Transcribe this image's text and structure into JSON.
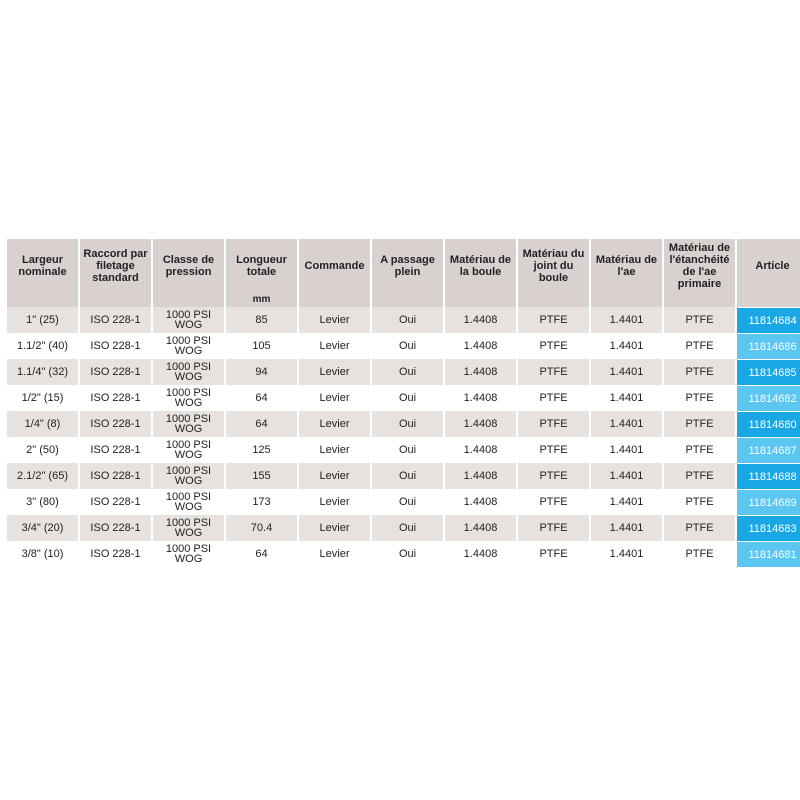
{
  "table": {
    "headers": [
      "Largeur nominale",
      "Raccord par filetage standard",
      "Classe de pression",
      "Longueur totale",
      "Commande",
      "A passage plein",
      "Matériau de la boule",
      "Matériau du joint du boule",
      "Matériau de l'ae",
      "Matériau de l'étanchéité de l'ae primaire",
      "Article"
    ],
    "units": [
      "",
      "",
      "",
      "mm",
      "",
      "",
      "",
      "",
      "",
      "",
      ""
    ],
    "rows": [
      {
        "largeur": "1\" (25)",
        "raccord": "ISO 228-1",
        "classe_l1": "1000 PSI",
        "classe_l2": "WOG",
        "longueur": "85",
        "commande": "Levier",
        "passage": "Oui",
        "boule": "1.4408",
        "joint": "PTFE",
        "ae": "1.4401",
        "etancheite": "PTFE",
        "article": "11814684"
      },
      {
        "largeur": "1.1/2\" (40)",
        "raccord": "ISO 228-1",
        "classe_l1": "1000 PSI",
        "classe_l2": "WOG",
        "longueur": "105",
        "commande": "Levier",
        "passage": "Oui",
        "boule": "1.4408",
        "joint": "PTFE",
        "ae": "1.4401",
        "etancheite": "PTFE",
        "article": "11814686"
      },
      {
        "largeur": "1.1/4\" (32)",
        "raccord": "ISO 228-1",
        "classe_l1": "1000 PSI",
        "classe_l2": "WOG",
        "longueur": "94",
        "commande": "Levier",
        "passage": "Oui",
        "boule": "1.4408",
        "joint": "PTFE",
        "ae": "1.4401",
        "etancheite": "PTFE",
        "article": "11814685"
      },
      {
        "largeur": "1/2\" (15)",
        "raccord": "ISO 228-1",
        "classe_l1": "1000 PSI",
        "classe_l2": "WOG",
        "longueur": "64",
        "commande": "Levier",
        "passage": "Oui",
        "boule": "1.4408",
        "joint": "PTFE",
        "ae": "1.4401",
        "etancheite": "PTFE",
        "article": "11814682"
      },
      {
        "largeur": "1/4\" (8)",
        "raccord": "ISO 228-1",
        "classe_l1": "1000 PSI",
        "classe_l2": "WOG",
        "longueur": "64",
        "commande": "Levier",
        "passage": "Oui",
        "boule": "1.4408",
        "joint": "PTFE",
        "ae": "1.4401",
        "etancheite": "PTFE",
        "article": "11814680"
      },
      {
        "largeur": "2\" (50)",
        "raccord": "ISO 228-1",
        "classe_l1": "1000 PSI",
        "classe_l2": "WOG",
        "longueur": "125",
        "commande": "Levier",
        "passage": "Oui",
        "boule": "1.4408",
        "joint": "PTFE",
        "ae": "1.4401",
        "etancheite": "PTFE",
        "article": "11814687"
      },
      {
        "largeur": "2.1/2\" (65)",
        "raccord": "ISO 228-1",
        "classe_l1": "1000 PSI",
        "classe_l2": "WOG",
        "longueur": "155",
        "commande": "Levier",
        "passage": "Oui",
        "boule": "1.4408",
        "joint": "PTFE",
        "ae": "1.4401",
        "etancheite": "PTFE",
        "article": "11814688"
      },
      {
        "largeur": "3\" (80)",
        "raccord": "ISO 228-1",
        "classe_l1": "1000 PSI",
        "classe_l2": "WOG",
        "longueur": "173",
        "commande": "Levier",
        "passage": "Oui",
        "boule": "1.4408",
        "joint": "PTFE",
        "ae": "1.4401",
        "etancheite": "PTFE",
        "article": "11814689"
      },
      {
        "largeur": "3/4\" (20)",
        "raccord": "ISO 228-1",
        "classe_l1": "1000 PSI",
        "classe_l2": "WOG",
        "longueur": "70.4",
        "commande": "Levier",
        "passage": "Oui",
        "boule": "1.4408",
        "joint": "PTFE",
        "ae": "1.4401",
        "etancheite": "PTFE",
        "article": "11814683"
      },
      {
        "largeur": "3/8\" (10)",
        "raccord": "ISO 228-1",
        "classe_l1": "1000 PSI",
        "classe_l2": "WOG",
        "longueur": "64",
        "commande": "Levier",
        "passage": "Oui",
        "boule": "1.4408",
        "joint": "PTFE",
        "ae": "1.4401",
        "etancheite": "PTFE",
        "article": "11814681"
      }
    ]
  },
  "colors": {
    "header_bg": "#d9d1cf",
    "row_alt_bg": "#e8e2df",
    "article_dark": "#1aa7e5",
    "article_light": "#5bc6ef"
  }
}
